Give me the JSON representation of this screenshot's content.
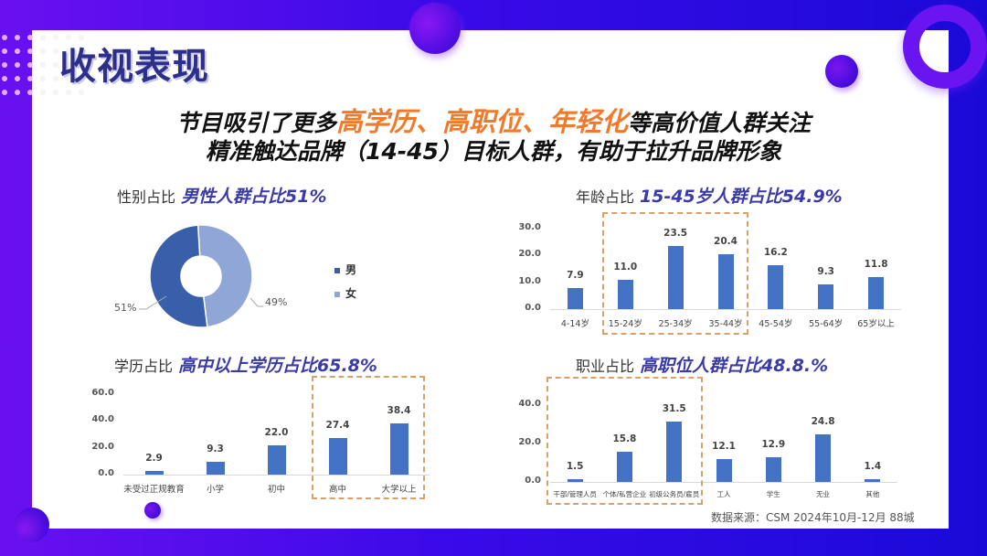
{
  "title": "收视表现",
  "headline": {
    "line1_prefix": "节目吸引了更多",
    "line1_highlight": "高学历、高职位、年轻化",
    "line1_suffix": "等高价值人群关注",
    "line2": "精准触达品牌（14-45）目标人群，有助于拉升品牌形象"
  },
  "colors": {
    "accent_purple": "#4a0ee6",
    "title_navy": "#2e2f8a",
    "highlight_orange": "#f07a2a",
    "bar_blue": "#4472c4",
    "pie_male": "#3a5faa",
    "pie_female": "#8fa6d6",
    "highlight_box": "#d9a06a"
  },
  "sections": {
    "gender": {
      "label": "性别占比",
      "emphasis": "男性人群占比51%"
    },
    "age": {
      "label": "年龄占比",
      "emphasis": "15-45岁人群占比54.9%"
    },
    "education": {
      "label": "学历占比",
      "emphasis": "高中以上学历占比65.8%"
    },
    "occupation": {
      "label": "职业占比",
      "emphasis": "高职位人群占比48.8.%"
    }
  },
  "source": "数据来源：CSM  2024年10月-12月  88城",
  "chart_data": [
    {
      "id": "gender",
      "type": "pie",
      "title": "性别占比",
      "categories": [
        "男",
        "女"
      ],
      "values": [
        51,
        49
      ],
      "labels": [
        "51%",
        "49%"
      ],
      "donut": true,
      "legend_position": "right"
    },
    {
      "id": "age",
      "type": "bar",
      "title": "年龄占比",
      "categories": [
        "4-14岁",
        "15-24岁",
        "25-34岁",
        "35-44岁",
        "45-54岁",
        "55-64岁",
        "65岁以上"
      ],
      "values": [
        7.9,
        11.0,
        23.5,
        20.4,
        16.2,
        9.3,
        11.8
      ],
      "value_labels": [
        "7.9",
        "11.0",
        "23.5",
        "20.4",
        "16.2",
        "9.3",
        "11.8"
      ],
      "yticks": [
        "0.0",
        "10.0",
        "20.0",
        "30.0"
      ],
      "ylim": [
        0,
        30
      ],
      "highlight_range": [
        1,
        3
      ]
    },
    {
      "id": "education",
      "type": "bar",
      "title": "学历占比",
      "categories": [
        "未受过正规教育",
        "小学",
        "初中",
        "高中",
        "大学以上"
      ],
      "values": [
        2.9,
        9.3,
        22.0,
        27.4,
        38.4
      ],
      "value_labels": [
        "2.9",
        "9.3",
        "22.0",
        "27.4",
        "38.4"
      ],
      "yticks": [
        "0.0",
        "20.0",
        "40.0",
        "60.0"
      ],
      "ylim": [
        0,
        60
      ],
      "highlight_range": [
        3,
        4
      ]
    },
    {
      "id": "occupation",
      "type": "bar",
      "title": "职业占比",
      "categories": [
        "干部/管理人员",
        "个体/私营企业",
        "初级公务员/雇员",
        "工人",
        "学生",
        "无业",
        "其他"
      ],
      "values": [
        1.5,
        15.8,
        31.5,
        12.1,
        12.9,
        24.8,
        1.4
      ],
      "value_labels": [
        "1.5",
        "15.8",
        "31.5",
        "12.1",
        "12.9",
        "24.8",
        "1.4"
      ],
      "yticks": [
        "0.0",
        "20.0",
        "40.0"
      ],
      "ylim": [
        0,
        40
      ],
      "highlight_range": [
        0,
        2
      ]
    }
  ]
}
